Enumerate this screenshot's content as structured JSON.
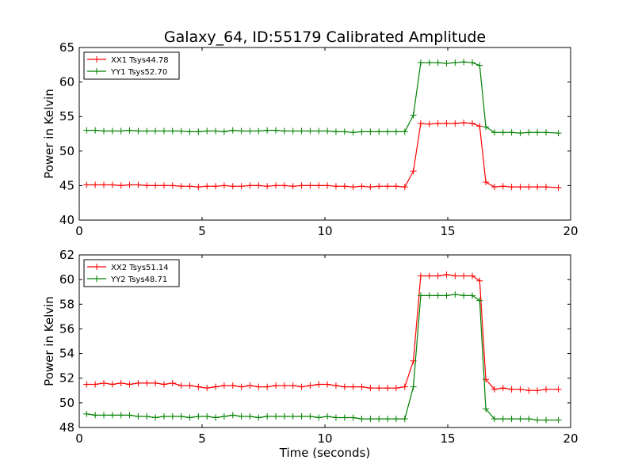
{
  "figure": {
    "title": "Galaxy_64, ID:55179 Calibrated Amplitude",
    "xlabel": "Time (seconds)"
  },
  "chart_data": [
    {
      "type": "line",
      "ylabel": "Power in Kelvin",
      "xlim": [
        0,
        20
      ],
      "ylim": [
        40,
        65
      ],
      "xticks": [
        0,
        5,
        10,
        15,
        20
      ],
      "yticks": [
        40,
        45,
        50,
        55,
        60,
        65
      ],
      "grid": false,
      "legend_position": "top-left",
      "x": [
        0.3,
        0.65,
        1.0,
        1.35,
        1.7,
        2.05,
        2.4,
        2.75,
        3.1,
        3.45,
        3.8,
        4.15,
        4.5,
        4.85,
        5.2,
        5.55,
        5.9,
        6.25,
        6.6,
        6.95,
        7.3,
        7.65,
        8.0,
        8.35,
        8.7,
        9.05,
        9.4,
        9.75,
        10.1,
        10.45,
        10.8,
        11.15,
        11.5,
        11.85,
        12.2,
        12.55,
        12.9,
        13.25,
        13.6,
        13.9,
        14.25,
        14.6,
        14.95,
        15.3,
        15.65,
        16.0,
        16.3,
        16.55,
        16.9,
        17.25,
        17.6,
        17.95,
        18.3,
        18.65,
        19.0,
        19.5
      ],
      "series": [
        {
          "name": "XX1 Tsys44.78",
          "color": "#ff0000",
          "values": [
            45.1,
            45.1,
            45.1,
            45.1,
            45.0,
            45.1,
            45.1,
            45.0,
            45.0,
            45.0,
            45.0,
            44.9,
            44.9,
            44.8,
            44.9,
            44.9,
            45.0,
            44.9,
            44.9,
            45.0,
            45.0,
            44.9,
            45.0,
            45.0,
            44.9,
            45.0,
            45.0,
            45.0,
            45.0,
            44.9,
            44.9,
            44.8,
            44.9,
            44.8,
            44.9,
            44.9,
            44.9,
            44.8,
            47.1,
            54.0,
            53.9,
            54.0,
            54.0,
            54.0,
            54.1,
            54.0,
            53.6,
            45.5,
            44.8,
            44.9,
            44.8,
            44.8,
            44.8,
            44.8,
            44.8,
            44.7
          ]
        },
        {
          "name": "YY1 Tsys52.70",
          "color": "#008000",
          "values": [
            53.0,
            53.0,
            52.9,
            52.9,
            52.9,
            53.0,
            52.9,
            52.9,
            52.9,
            52.9,
            52.9,
            52.9,
            52.8,
            52.8,
            52.9,
            52.9,
            52.8,
            53.0,
            52.9,
            52.9,
            52.9,
            53.0,
            53.0,
            52.9,
            52.9,
            52.9,
            52.9,
            52.9,
            52.9,
            52.8,
            52.8,
            52.7,
            52.8,
            52.8,
            52.8,
            52.8,
            52.8,
            52.8,
            55.2,
            62.8,
            62.8,
            62.8,
            62.7,
            62.8,
            62.9,
            62.8,
            62.4,
            53.5,
            52.7,
            52.7,
            52.7,
            52.6,
            52.7,
            52.7,
            52.7,
            52.6
          ]
        }
      ]
    },
    {
      "type": "line",
      "ylabel": "Power in Kelvin",
      "xlim": [
        0,
        20
      ],
      "ylim": [
        48,
        62
      ],
      "xticks": [
        0,
        5,
        10,
        15,
        20
      ],
      "yticks": [
        48,
        50,
        52,
        54,
        56,
        58,
        60,
        62
      ],
      "grid": false,
      "legend_position": "top-left",
      "x": [
        0.3,
        0.65,
        1.0,
        1.35,
        1.7,
        2.05,
        2.4,
        2.75,
        3.1,
        3.45,
        3.8,
        4.15,
        4.5,
        4.85,
        5.2,
        5.55,
        5.9,
        6.25,
        6.6,
        6.95,
        7.3,
        7.65,
        8.0,
        8.35,
        8.7,
        9.05,
        9.4,
        9.75,
        10.1,
        10.45,
        10.8,
        11.15,
        11.5,
        11.85,
        12.2,
        12.55,
        12.9,
        13.25,
        13.6,
        13.9,
        14.25,
        14.6,
        14.95,
        15.3,
        15.65,
        16.0,
        16.3,
        16.55,
        16.9,
        17.25,
        17.6,
        17.95,
        18.3,
        18.65,
        19.0,
        19.5
      ],
      "series": [
        {
          "name": "XX2 Tsys51.14",
          "color": "#ff0000",
          "values": [
            51.5,
            51.5,
            51.6,
            51.5,
            51.6,
            51.5,
            51.6,
            51.6,
            51.6,
            51.5,
            51.6,
            51.4,
            51.4,
            51.3,
            51.2,
            51.3,
            51.4,
            51.4,
            51.3,
            51.4,
            51.3,
            51.3,
            51.4,
            51.4,
            51.4,
            51.3,
            51.4,
            51.5,
            51.5,
            51.4,
            51.3,
            51.3,
            51.3,
            51.2,
            51.2,
            51.2,
            51.2,
            51.3,
            53.4,
            60.3,
            60.3,
            60.3,
            60.4,
            60.3,
            60.3,
            60.3,
            59.9,
            51.9,
            51.1,
            51.2,
            51.1,
            51.1,
            51.0,
            51.0,
            51.1,
            51.1
          ]
        },
        {
          "name": "YY2 Tsys48.71",
          "color": "#008000",
          "values": [
            49.1,
            49.0,
            49.0,
            49.0,
            49.0,
            49.0,
            48.9,
            48.9,
            48.8,
            48.9,
            48.9,
            48.9,
            48.8,
            48.9,
            48.9,
            48.8,
            48.9,
            49.0,
            48.9,
            48.9,
            48.8,
            48.9,
            48.9,
            48.9,
            48.9,
            48.9,
            48.9,
            48.8,
            48.9,
            48.8,
            48.8,
            48.8,
            48.7,
            48.7,
            48.7,
            48.7,
            48.7,
            48.7,
            51.3,
            58.7,
            58.7,
            58.7,
            58.7,
            58.8,
            58.7,
            58.7,
            58.3,
            49.5,
            48.7,
            48.7,
            48.7,
            48.7,
            48.7,
            48.6,
            48.6,
            48.6
          ]
        }
      ]
    }
  ]
}
